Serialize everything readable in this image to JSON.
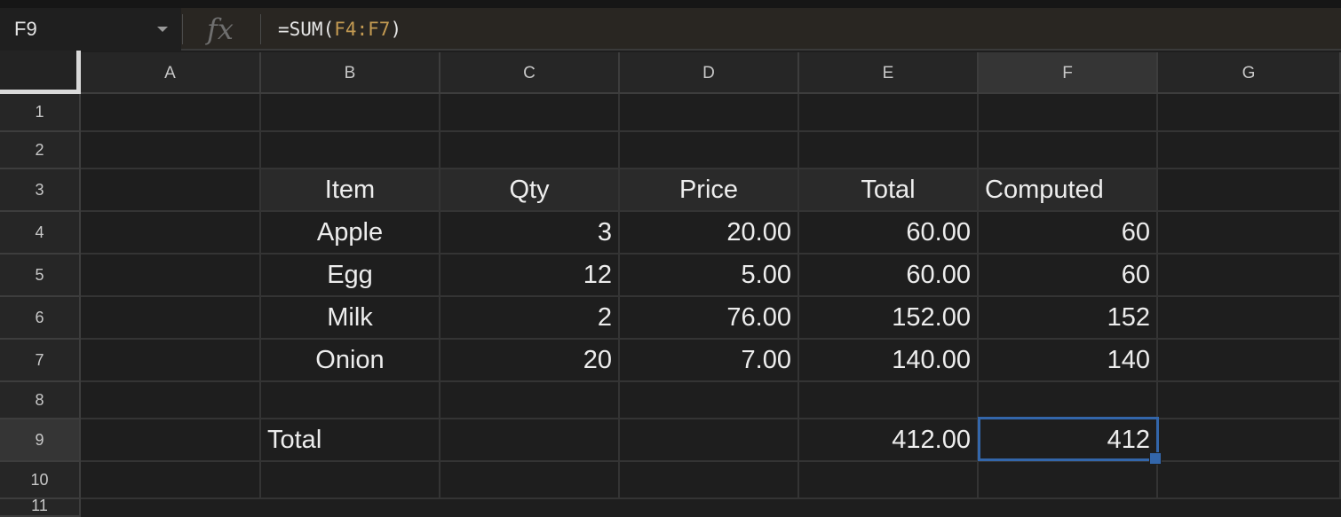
{
  "formula_bar": {
    "cell_ref": "F9",
    "fx_label": "fx",
    "formula_prefix": "=SUM(",
    "formula_range": "F4:F7",
    "formula_suffix": ")"
  },
  "columns": [
    "A",
    "B",
    "C",
    "D",
    "E",
    "F",
    "G"
  ],
  "rows": [
    "1",
    "2",
    "3",
    "4",
    "5",
    "6",
    "7",
    "8",
    "9",
    "10",
    "11"
  ],
  "selected_cell": "F9",
  "table": {
    "headers": [
      "Item",
      "Qty",
      "Price",
      "Total",
      "Computed"
    ],
    "items": [
      {
        "item": "Apple",
        "qty": "3",
        "price": "20.00",
        "total": "60.00",
        "computed": "60"
      },
      {
        "item": "Egg",
        "qty": "12",
        "price": "5.00",
        "total": "60.00",
        "computed": "60"
      },
      {
        "item": "Milk",
        "qty": "2",
        "price": "76.00",
        "total": "152.00",
        "computed": "152"
      },
      {
        "item": "Onion",
        "qty": "20",
        "price": "7.00",
        "total": "140.00",
        "computed": "140"
      }
    ],
    "total_row": {
      "label": "Total",
      "total": "412.00",
      "computed": "412"
    }
  },
  "colors": {
    "background": "#1e1e1e",
    "selection_border": "#3366aa",
    "formula_ref": "#c39a52"
  }
}
